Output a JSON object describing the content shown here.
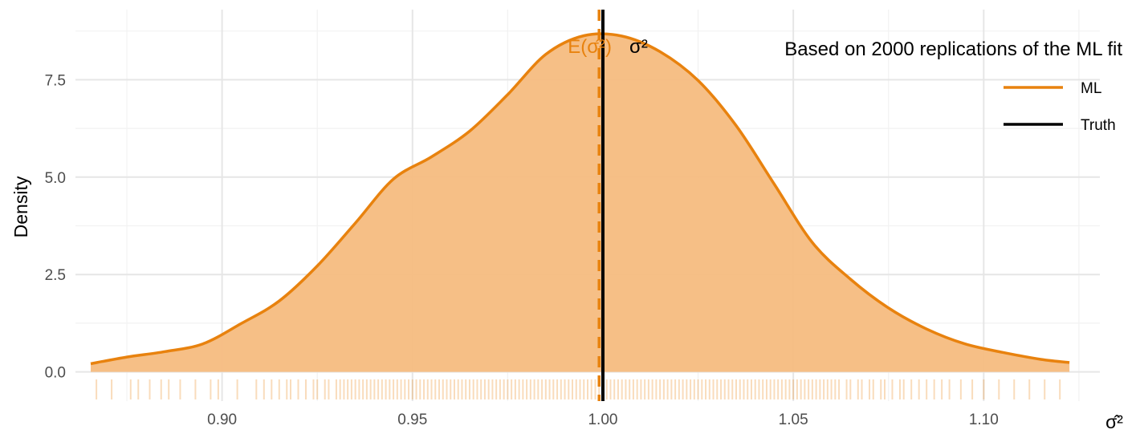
{
  "chart_data": {
    "type": "area",
    "title": "",
    "xlabel": "σ̂²",
    "ylabel": "Density",
    "xlim": [
      0.8615,
      1.1305
    ],
    "ylim": [
      -0.75,
      9.3
    ],
    "grid": true,
    "x_ticks": [
      0.9,
      0.95,
      1.0,
      1.05,
      1.1
    ],
    "x_tick_labels": [
      "0.90",
      "0.95",
      "1.00",
      "1.05",
      "1.10"
    ],
    "y_ticks": [
      0.0,
      2.5,
      5.0,
      7.5
    ],
    "y_tick_labels": [
      "0.0",
      "2.5",
      "5.0",
      "7.5"
    ],
    "legend": {
      "title": "Based on 2000 replications of the ML fit",
      "position": "top-right",
      "entries": [
        {
          "label": "ML",
          "color": "#E8820E"
        },
        {
          "label": "Truth",
          "color": "#000000"
        }
      ]
    },
    "series": [
      {
        "name": "ML",
        "color": "#E8820E",
        "fill": "#F5BC80",
        "x": [
          0.8655,
          0.875,
          0.885,
          0.895,
          0.905,
          0.915,
          0.925,
          0.935,
          0.945,
          0.955,
          0.965,
          0.975,
          0.985,
          0.995,
          1.005,
          1.015,
          1.025,
          1.035,
          1.045,
          1.055,
          1.065,
          1.075,
          1.085,
          1.095,
          1.105,
          1.115,
          1.1225
        ],
        "y": [
          0.21,
          0.38,
          0.52,
          0.72,
          1.24,
          1.82,
          2.72,
          3.82,
          4.95,
          5.52,
          6.18,
          7.12,
          8.15,
          8.63,
          8.62,
          8.22,
          7.48,
          6.32,
          4.82,
          3.32,
          2.38,
          1.64,
          1.1,
          0.72,
          0.5,
          0.32,
          0.24
        ]
      }
    ],
    "reference_lines": [
      {
        "label": "E(σ̂²)",
        "x": 0.999,
        "color": "#E8820E",
        "style": "dashed"
      },
      {
        "label": "σ²",
        "x": 1.0,
        "color": "#000000",
        "style": "solid"
      }
    ],
    "rug": {
      "color": "#E8820E",
      "x": [
        0.867,
        0.871,
        0.876,
        0.878,
        0.881,
        0.884,
        0.886,
        0.889,
        0.893,
        0.897,
        0.899,
        0.904,
        0.909,
        0.911,
        0.913,
        0.915,
        0.917,
        0.918,
        0.92,
        0.922,
        0.924,
        0.925,
        0.927,
        0.928,
        0.93,
        0.931,
        0.932,
        0.933,
        0.934,
        0.935,
        0.936,
        0.937,
        0.938,
        0.939,
        0.94,
        0.941,
        0.942,
        0.943,
        0.944,
        0.945,
        0.946,
        0.947,
        0.948,
        0.949,
        0.95,
        0.951,
        0.952,
        0.953,
        0.954,
        0.955,
        0.956,
        0.957,
        0.958,
        0.959,
        0.96,
        0.961,
        0.962,
        0.963,
        0.964,
        0.965,
        0.966,
        0.967,
        0.968,
        0.969,
        0.97,
        0.971,
        0.972,
        0.973,
        0.974,
        0.975,
        0.976,
        0.977,
        0.978,
        0.979,
        0.98,
        0.981,
        0.982,
        0.983,
        0.984,
        0.985,
        0.986,
        0.987,
        0.988,
        0.989,
        0.99,
        0.991,
        0.992,
        0.993,
        0.994,
        0.995,
        0.996,
        0.997,
        0.998,
        0.999,
        1.0,
        1.001,
        1.002,
        1.003,
        1.004,
        1.005,
        1.006,
        1.007,
        1.008,
        1.009,
        1.01,
        1.011,
        1.012,
        1.013,
        1.014,
        1.015,
        1.016,
        1.017,
        1.018,
        1.019,
        1.02,
        1.021,
        1.022,
        1.023,
        1.024,
        1.025,
        1.026,
        1.027,
        1.028,
        1.029,
        1.03,
        1.031,
        1.032,
        1.033,
        1.034,
        1.035,
        1.036,
        1.037,
        1.038,
        1.039,
        1.04,
        1.041,
        1.042,
        1.043,
        1.044,
        1.045,
        1.046,
        1.047,
        1.048,
        1.049,
        1.05,
        1.051,
        1.052,
        1.053,
        1.054,
        1.055,
        1.056,
        1.057,
        1.058,
        1.059,
        1.06,
        1.061,
        1.062,
        1.064,
        1.065,
        1.067,
        1.068,
        1.07,
        1.071,
        1.073,
        1.074,
        1.076,
        1.078,
        1.079,
        1.081,
        1.083,
        1.085,
        1.087,
        1.089,
        1.091,
        1.094,
        1.097,
        1.1,
        1.104,
        1.108,
        1.112,
        1.116,
        1.12
      ]
    }
  }
}
